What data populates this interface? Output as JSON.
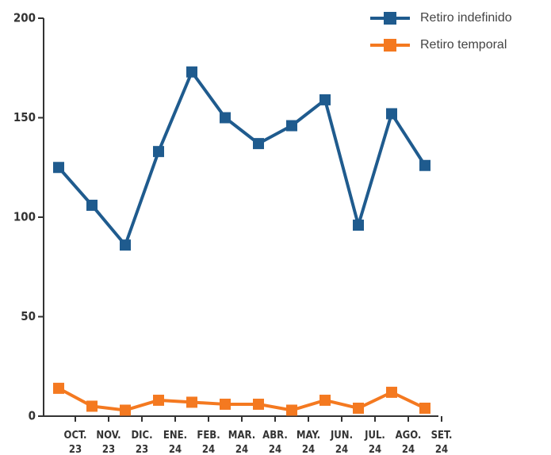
{
  "chart_data": {
    "type": "line",
    "categories": [
      "OCT. 23",
      "NOV. 23",
      "DIC. 23",
      "ENE. 24",
      "FEB. 24",
      "MAR. 24",
      "ABR. 24",
      "MAY. 24",
      "JUN. 24",
      "JUL. 24",
      "AGO. 24",
      "SET. 24"
    ],
    "series": [
      {
        "name": "Retiro indefinido",
        "color": "#1f5b8e",
        "values": [
          125,
          106,
          86,
          133,
          173,
          150,
          137,
          146,
          159,
          96,
          152,
          126
        ]
      },
      {
        "name": "Retiro temporal",
        "color": "#f47920",
        "values": [
          14,
          5,
          3,
          8,
          7,
          6,
          6,
          3,
          8,
          4,
          12,
          4
        ]
      }
    ],
    "ylim": [
      0,
      200
    ],
    "yticks": [
      0,
      50,
      100,
      150,
      200
    ],
    "grid": false,
    "legend": "top-right"
  }
}
